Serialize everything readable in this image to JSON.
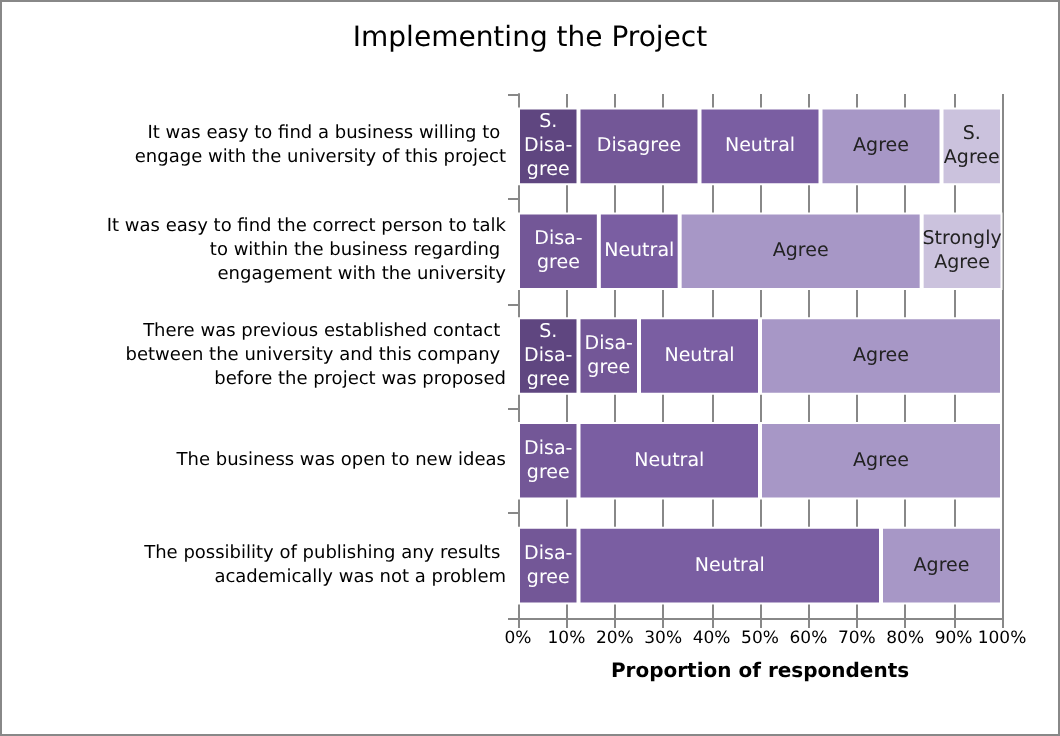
{
  "chart_data": {
    "type": "bar",
    "orientation": "horizontal",
    "stacked": true,
    "title": "Implementing the Project",
    "xlabel": "Proportion of respondents",
    "categories": [
      "It was easy to find a business willing to engage with the university of this project",
      "It was easy to find the correct person to talk to within the business regarding engagement with the university",
      "There was previous established contact between the university and this company before the project was proposed",
      "The business was open to new ideas",
      "The possibility of publishing any results academically was not a problem"
    ],
    "series": [
      {
        "color": "#5f4680",
        "values": [
          12.5,
          null,
          12.5,
          null,
          null
        ],
        "value_labels": [
          "S.\nDisa-\ngree",
          null,
          "S.\nDisa-\ngree",
          null,
          null
        ]
      },
      {
        "color": "#735797",
        "values": [
          25,
          16.7,
          12.5,
          12.5,
          12.5
        ],
        "value_labels": [
          "Disagree",
          "Disa-\ngree",
          "Disa-\ngree",
          "Disa-\ngree",
          "Disa-\ngree"
        ]
      },
      {
        "color": "#7a5ea2",
        "values": [
          25,
          16.7,
          25,
          37.5,
          62.5
        ],
        "value_labels": [
          "Neutral",
          "Neutral",
          "Neutral",
          "Neutral",
          "Neutral"
        ]
      },
      {
        "color": "#a797c6",
        "values": [
          25,
          50,
          50,
          50,
          25
        ],
        "value_labels": [
          "Agree",
          "Agree",
          "Agree",
          "Agree",
          "Agree"
        ]
      },
      {
        "color": "#cbc2dd",
        "values": [
          12.5,
          16.7,
          null,
          null,
          null
        ],
        "value_labels": [
          "S.\nAgree",
          "Strongly\nAgree",
          null,
          null,
          null
        ]
      }
    ],
    "xlim": [
      0,
      100
    ],
    "xticks": [
      {
        "value": 0,
        "label": "0%"
      },
      {
        "value": 10,
        "label": "10%"
      },
      {
        "value": 20,
        "label": "20%"
      },
      {
        "value": 30,
        "label": "30%"
      },
      {
        "value": 40,
        "label": "40%"
      },
      {
        "value": 50,
        "label": "50%"
      },
      {
        "value": 60,
        "label": "60%"
      },
      {
        "value": 70,
        "label": "70%"
      },
      {
        "value": 80,
        "label": "80%"
      },
      {
        "value": 90,
        "label": "90%"
      },
      {
        "value": 100,
        "label": "100%"
      }
    ],
    "grid": "x"
  }
}
